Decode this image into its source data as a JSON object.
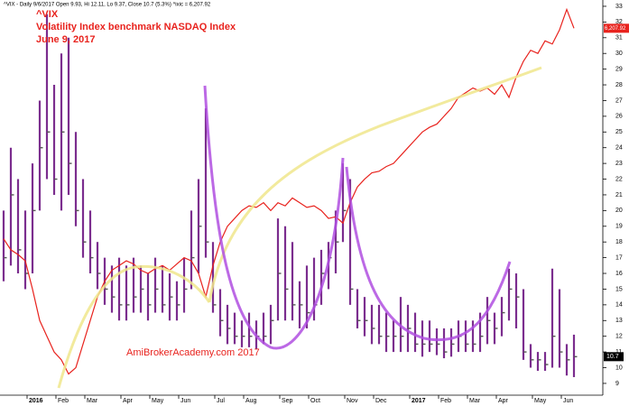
{
  "chart_data": {
    "type": "ohlc",
    "header": "^VIX - Daily 9/6/2017 Open 9.93, Hi 12.11, Lo 9.37, Close 10.7 (5.3%) ^ixic = 6,207.92",
    "title_lines": [
      "^VIX",
      "Volatility Index benchmark NASDAQ Index",
      "June 9, 2017"
    ],
    "watermark": "AmiBrokerAcademy.com  2017",
    "categories": [
      null,
      null,
      null,
      null,
      "2016",
      null,
      null,
      null,
      "Feb",
      null,
      null,
      null,
      "Mar",
      null,
      null,
      null,
      null,
      "Apr",
      null,
      null,
      null,
      "May",
      null,
      null,
      null,
      "Jun",
      null,
      null,
      null,
      null,
      "Jul",
      null,
      null,
      null,
      "Aug",
      null,
      null,
      null,
      null,
      "Sep",
      null,
      null,
      null,
      "Oct",
      null,
      null,
      null,
      null,
      "Nov",
      null,
      null,
      null,
      "Dec",
      null,
      null,
      null,
      null,
      "2017",
      null,
      null,
      null,
      "Feb",
      null,
      null,
      null,
      "Mar",
      null,
      null,
      null,
      "Apr",
      null,
      null,
      null,
      null,
      "May",
      null,
      null,
      null,
      "Jun",
      null
    ],
    "series": [
      {
        "color": "#7b2d8e",
        "high": [
          20,
          24,
          22,
          20,
          23,
          27,
          32.5,
          28,
          30,
          31,
          25,
          22,
          20,
          18,
          17,
          16.5,
          17,
          16.5,
          17,
          16.5,
          16,
          17,
          16.5,
          16,
          15.5,
          17,
          20,
          22,
          26.5,
          18,
          15,
          14,
          13.5,
          13,
          13.5,
          13,
          13.5,
          14,
          19.5,
          19,
          18,
          15.5,
          16.5,
          17,
          17.5,
          18,
          20,
          23,
          22,
          15,
          14.5,
          14,
          14,
          13.5,
          13,
          14.5,
          14,
          13.5,
          13,
          13,
          12.5,
          12.5,
          12.5,
          13,
          13,
          13,
          13.5,
          14.5,
          13.5,
          14.5,
          16.3,
          16,
          15,
          11.5,
          11,
          11,
          16.3,
          15,
          11.5,
          12.1
        ],
        "low": [
          15.5,
          16.5,
          16,
          15,
          16,
          20,
          22,
          21,
          20,
          21,
          19,
          17,
          16,
          15,
          14,
          13.5,
          13,
          13,
          13.5,
          13.5,
          13,
          13.5,
          13.5,
          13,
          13,
          13.5,
          15,
          16,
          17,
          13.5,
          12,
          11.5,
          11.5,
          11.3,
          11.3,
          11.2,
          11.5,
          11.5,
          13,
          13,
          13,
          12.5,
          12.5,
          13,
          14,
          15,
          16,
          18,
          14,
          12.5,
          12,
          11.5,
          11.5,
          11,
          11,
          11,
          11,
          11,
          10.7,
          11,
          10.8,
          10.6,
          10.7,
          11,
          11,
          11,
          11,
          11.5,
          11.5,
          12,
          13,
          12.5,
          10.5,
          10,
          9.8,
          9.8,
          10,
          10,
          9.5,
          9.4
        ],
        "close": [
          17,
          21,
          17.5,
          16,
          20,
          24,
          25,
          22,
          25,
          23,
          20,
          18,
          17,
          16,
          15,
          14.5,
          14,
          14,
          14.5,
          15,
          14,
          15,
          14,
          14.5,
          14,
          15,
          17,
          19,
          18,
          14,
          13,
          12.5,
          12,
          12,
          12,
          12,
          12,
          13,
          16,
          15,
          14,
          14,
          13.5,
          14,
          16,
          17,
          18,
          20,
          15,
          13,
          13,
          12.5,
          12,
          12,
          12,
          12,
          12.5,
          11.5,
          11.5,
          11.5,
          11.5,
          11,
          11.5,
          12,
          11.5,
          11.5,
          12,
          13,
          12.5,
          13.5,
          15,
          14.5,
          11,
          10.5,
          10.5,
          10.2,
          12,
          11,
          10.5,
          10.7
        ],
        "last_label": "10.7"
      },
      {
        "type": "line",
        "color": "#e8231e",
        "values": [
          18.2,
          17.5,
          17.2,
          16.8,
          15,
          13,
          12,
          11,
          10.5,
          9.6,
          10,
          11.5,
          13,
          14.5,
          15.5,
          16.2,
          16.5,
          16.8,
          16.6,
          16.2,
          16,
          16.3,
          16.5,
          16.2,
          16.6,
          17,
          16.8,
          16,
          14.5,
          16.5,
          18,
          19,
          19.5,
          20,
          20.3,
          20.2,
          20.5,
          20,
          20.5,
          20.3,
          20.8,
          20.5,
          20.2,
          20.3,
          20,
          19.5,
          19.6,
          19.2,
          20.5,
          21.5,
          22,
          22.4,
          22.5,
          22.8,
          23,
          23.5,
          24,
          24.5,
          25,
          25.3,
          25.5,
          26,
          26.5,
          27.2,
          27.5,
          27.8,
          27.6,
          27.8,
          27.4,
          28,
          27.2,
          28.5,
          29.5,
          30.2,
          30,
          30.8,
          30.6,
          31.5,
          32.8,
          31.6
        ],
        "last_label": "6,207.92"
      }
    ],
    "ylim": [
      8.25,
      33.4
    ],
    "yticks": [
      9,
      10,
      11,
      12,
      13,
      14,
      15,
      16,
      17,
      18,
      19,
      20,
      21,
      22,
      23,
      24,
      25,
      26,
      27,
      28,
      29,
      30,
      31,
      32,
      33
    ]
  }
}
